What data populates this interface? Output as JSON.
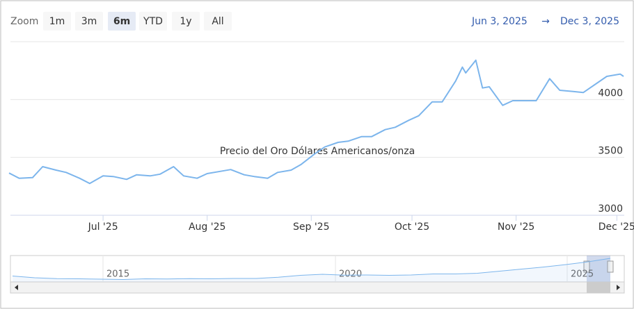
{
  "chart_data": {
    "type": "line",
    "title": "Precio del Oro Dólares Americanos/onza",
    "zoom_label": "Zoom",
    "range_buttons": [
      "1m",
      "3m",
      "6m",
      "YTD",
      "1y",
      "All"
    ],
    "selected_button": "6m",
    "range_from": "Jun 3, 2025",
    "range_separator": "→",
    "range_to": "Dec 3, 2025",
    "color": "#7cb5ec",
    "x": [
      "2025-06-03",
      "2025-06-06",
      "2025-06-10",
      "2025-06-13",
      "2025-06-17",
      "2025-06-20",
      "2025-06-24",
      "2025-06-27",
      "2025-07-01",
      "2025-07-04",
      "2025-07-08",
      "2025-07-11",
      "2025-07-15",
      "2025-07-18",
      "2025-07-22",
      "2025-07-25",
      "2025-07-29",
      "2025-08-01",
      "2025-08-05",
      "2025-08-08",
      "2025-08-12",
      "2025-08-15",
      "2025-08-19",
      "2025-08-22",
      "2025-08-26",
      "2025-08-29",
      "2025-09-02",
      "2025-09-05",
      "2025-09-09",
      "2025-09-12",
      "2025-09-16",
      "2025-09-19",
      "2025-09-23",
      "2025-09-26",
      "2025-09-30",
      "2025-10-03",
      "2025-10-07",
      "2025-10-10",
      "2025-10-14",
      "2025-10-16",
      "2025-10-17",
      "2025-10-20",
      "2025-10-22",
      "2025-10-24",
      "2025-10-28",
      "2025-10-31",
      "2025-11-04",
      "2025-11-07",
      "2025-11-11",
      "2025-11-14",
      "2025-11-18",
      "2025-11-21",
      "2025-11-25",
      "2025-11-28",
      "2025-12-02",
      "2025-12-03"
    ],
    "values": [
      3365,
      3320,
      3325,
      3420,
      3390,
      3370,
      3320,
      3275,
      3340,
      3335,
      3310,
      3350,
      3340,
      3355,
      3420,
      3340,
      3320,
      3360,
      3380,
      3395,
      3350,
      3335,
      3320,
      3370,
      3390,
      3440,
      3530,
      3590,
      3630,
      3640,
      3680,
      3680,
      3740,
      3760,
      3820,
      3860,
      3980,
      3980,
      4160,
      4280,
      4230,
      4340,
      4100,
      4110,
      3950,
      3990,
      3990,
      3990,
      4180,
      4080,
      4070,
      4060,
      4140,
      4200,
      4220,
      4200
    ],
    "xlim": [
      "2025-06-03",
      "2025-12-03"
    ],
    "xticks": [
      {
        "value": "2025-07-01",
        "label": "Jul '25"
      },
      {
        "value": "2025-08-01",
        "label": "Aug '25"
      },
      {
        "value": "2025-09-01",
        "label": "Sep '25"
      },
      {
        "value": "2025-10-01",
        "label": "Oct '25"
      },
      {
        "value": "2025-11-01",
        "label": "Nov '25"
      },
      {
        "value": "2025-12-01",
        "label": "Dec '25"
      }
    ],
    "ylim": [
      3000,
      4500
    ],
    "yticks": [
      3000,
      3500,
      4000
    ],
    "grid": true,
    "navigator": {
      "labels": [
        "2015",
        "2020",
        "2025"
      ],
      "values": [
        1650,
        1400,
        1280,
        1250,
        1200,
        1150,
        1250,
        1230,
        1280,
        1250,
        1300,
        1300,
        1480,
        1750,
        1900,
        1780,
        1800,
        1750,
        1800,
        1950,
        1950,
        2050,
        2350,
        2650,
        2950,
        3300,
        3700,
        4200
      ]
    }
  }
}
